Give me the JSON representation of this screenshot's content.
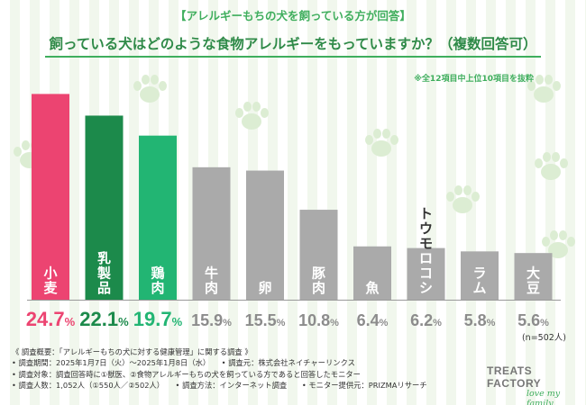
{
  "header": {
    "top_label": "【アレルギーもちの犬を飼っている方が回答】",
    "title": "飼っている犬はどのような食物アレルギーをもっていますか？（複数回答可）",
    "note": "※全12項目中上位10項目を抜粋"
  },
  "chart_data": {
    "type": "bar",
    "categories": [
      "小麦",
      "乳製品",
      "鶏肉",
      "牛肉",
      "卵",
      "豚肉",
      "魚",
      "トウモロコシ",
      "ラム",
      "大豆"
    ],
    "values": [
      24.7,
      22.1,
      19.7,
      15.9,
      15.5,
      10.8,
      6.4,
      6.2,
      5.8,
      5.6
    ],
    "unit": "%",
    "colors": [
      "#ec4471",
      "#1c8a4b",
      "#22b573",
      "#aaaaaa",
      "#aaaaaa",
      "#aaaaaa",
      "#aaaaaa",
      "#aaaaaa",
      "#aaaaaa",
      "#aaaaaa"
    ],
    "label_colors": [
      "#ec4471",
      "#1c8a4b",
      "#22b573",
      "#8c8c8c",
      "#8c8c8c",
      "#8c8c8c",
      "#8c8c8c",
      "#8c8c8c",
      "#8c8c8c",
      "#8c8c8c"
    ],
    "ylim": [
      0,
      25.5
    ],
    "sample_note": "(n=502人)"
  },
  "survey": {
    "heading": "《 調査概要：「アレルギーもちの犬に対する健康管理」に関する調査 》",
    "lines": [
      "• 調査期間：2025年1月7日（火）〜2025年1月8日（水）　　• 調査元：株式会社ネイチャーリンクス",
      "• 調査対象：調査回答時に①獣医、②食物アレルギーもちの犬を飼っている方であると回答したモニター",
      "• 調査人数：1,052人（①550人／②502人）　　• 調査方法：インターネット調査　　• モニター提供元：PRIZMAリサーチ"
    ]
  },
  "brand": {
    "name": "TREATS FACTORY",
    "tagline": "love my family"
  }
}
